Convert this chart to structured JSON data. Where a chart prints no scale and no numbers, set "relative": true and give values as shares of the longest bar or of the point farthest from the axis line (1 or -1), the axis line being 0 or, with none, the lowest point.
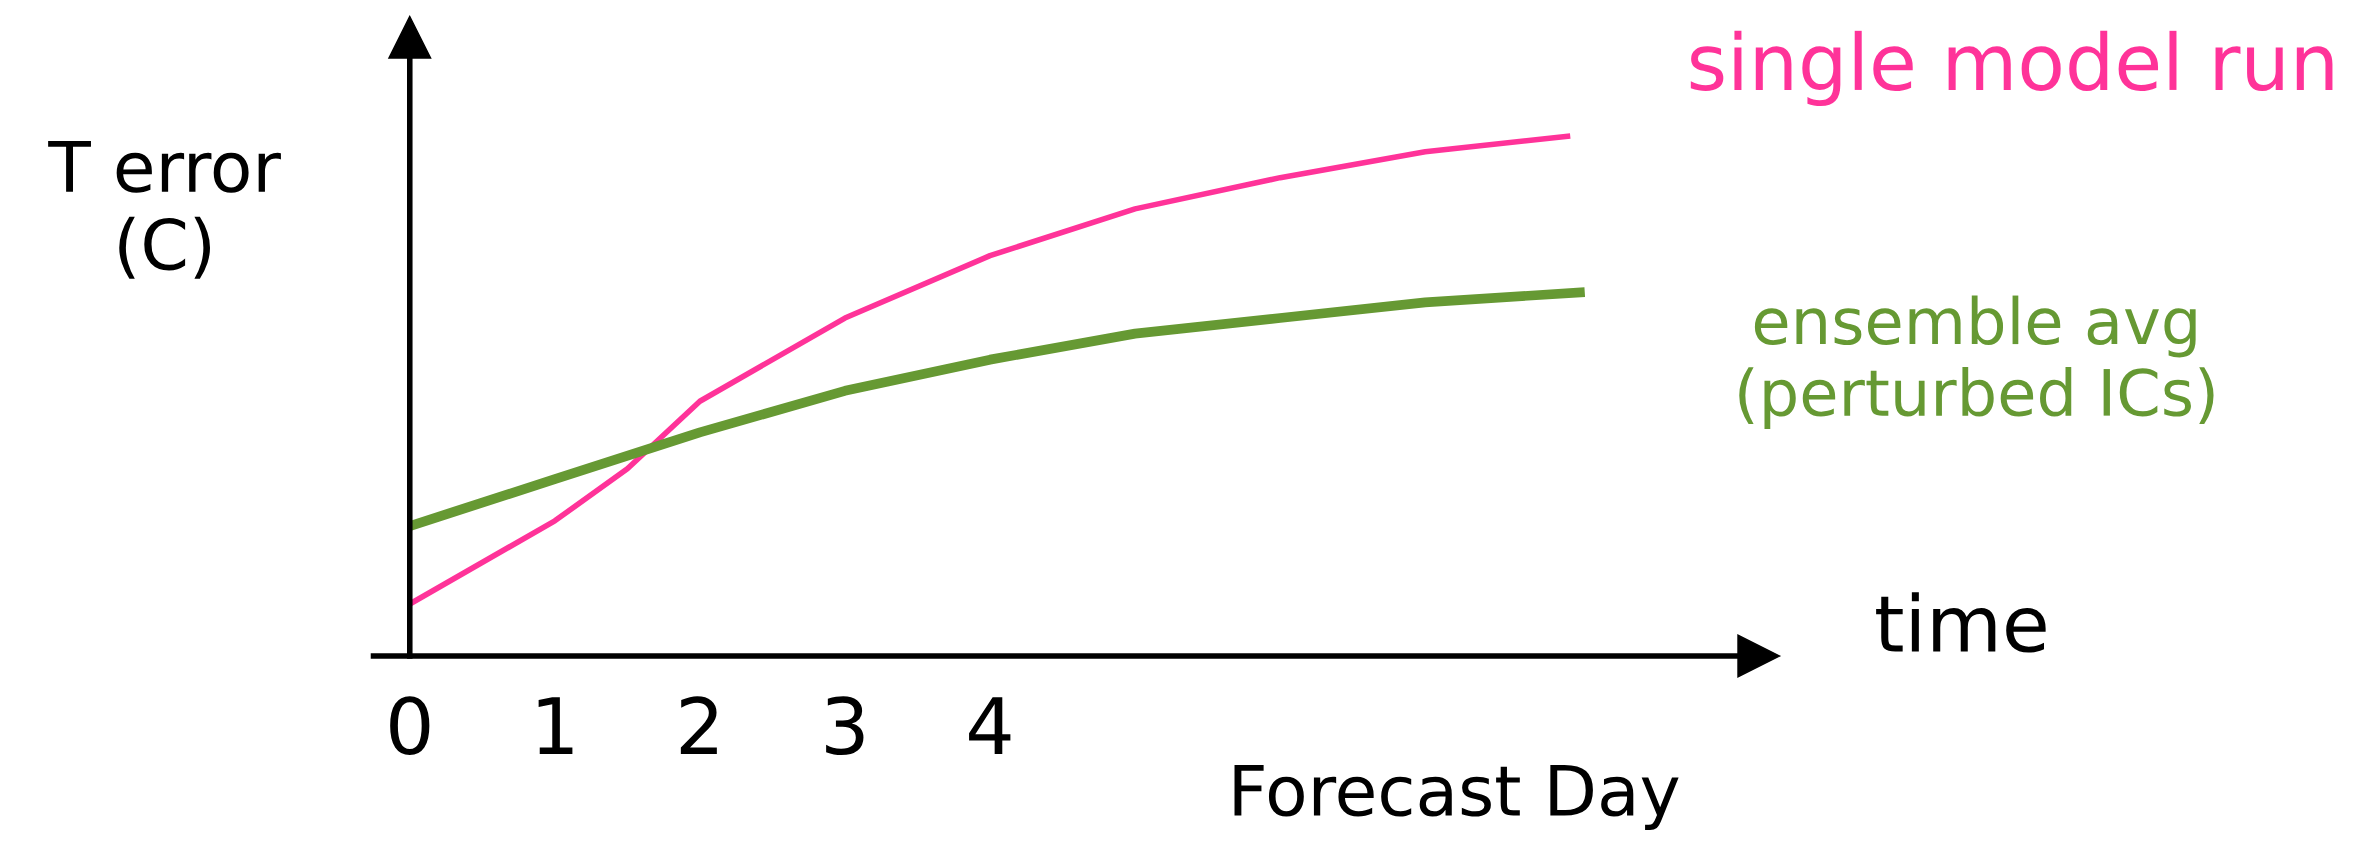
{
  "chart_data": {
    "type": "line",
    "relative": true,
    "xlabel": "Forecast Day",
    "ylabel": "T error\n(C)",
    "xlim": [
      -0.25,
      9.3
    ],
    "xticks": [
      0,
      1,
      2,
      3,
      4
    ],
    "annotations": [
      "time"
    ],
    "series": [
      {
        "name": "single model run",
        "color": "#ff3399",
        "x": [
          0,
          1,
          1.5,
          2,
          3,
          4,
          5,
          6,
          7,
          8
        ],
        "values": [
          0.1,
          0.26,
          0.36,
          0.49,
          0.65,
          0.77,
          0.86,
          0.92,
          0.97,
          1.0
        ]
      },
      {
        "name": "ensemble avg\n(perturbed ICs)",
        "color": "#669933",
        "x": [
          0,
          1,
          2,
          3,
          4,
          5,
          6,
          7,
          8.1
        ],
        "values": [
          0.25,
          0.34,
          0.43,
          0.51,
          0.57,
          0.62,
          0.65,
          0.68,
          0.7
        ]
      }
    ]
  }
}
